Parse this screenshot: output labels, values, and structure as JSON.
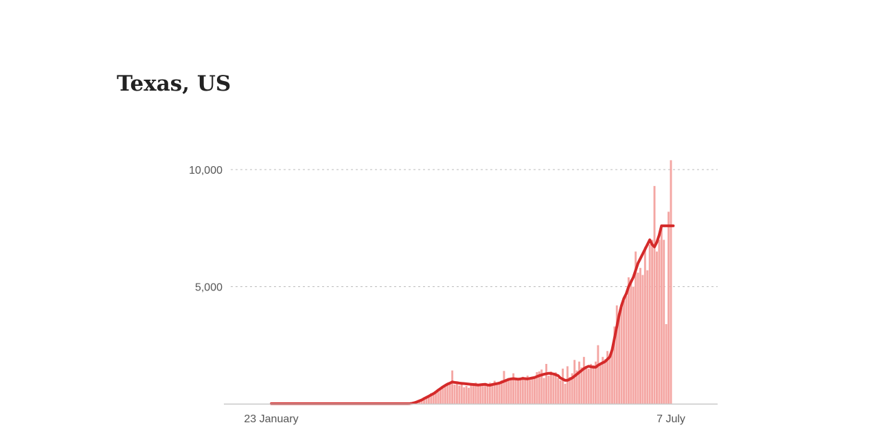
{
  "title": "Texas, US",
  "colors": {
    "bar": "#f4a6a3",
    "bar_highlight": "#f0b8b6",
    "line": "#d42a2a",
    "grid": "#bbbbbb",
    "baseline": "#c8c8c8",
    "text": "#555555"
  },
  "chart_data": {
    "type": "bar",
    "title": "Texas, US",
    "xlabel": "",
    "ylabel": "",
    "x_tick_labels": [
      "23 January",
      "7 July"
    ],
    "x_range": [
      "2020-01-23",
      "2020-07-07"
    ],
    "y_ticks": [
      5000,
      10000
    ],
    "y_tick_labels": [
      "5,000",
      "10,000"
    ],
    "ylim": [
      0,
      10000
    ],
    "grid": "horizontal dashed",
    "series": [
      {
        "type": "bar",
        "values": [
          0,
          0,
          0,
          0,
          0,
          0,
          0,
          0,
          0,
          0,
          0,
          0,
          0,
          0,
          0,
          0,
          0,
          0,
          0,
          0,
          0,
          0,
          0,
          0,
          0,
          0,
          0,
          0,
          0,
          0,
          0,
          0,
          0,
          0,
          0,
          0,
          0,
          0,
          0,
          0,
          0,
          0,
          0,
          0,
          0,
          0,
          0,
          0,
          0,
          0,
          0,
          0,
          0,
          0,
          0,
          0,
          0,
          0,
          0,
          5,
          20,
          40,
          80,
          110,
          150,
          230,
          260,
          340,
          450,
          430,
          520,
          600,
          650,
          700,
          720,
          800,
          870,
          1420,
          820,
          940,
          780,
          820,
          700,
          760,
          680,
          820,
          830,
          900,
          760,
          820,
          760,
          850,
          820,
          900,
          870,
          980,
          830,
          940,
          1000,
          1400,
          1000,
          1100,
          1020,
          1300,
          1040,
          1100,
          1080,
          1150,
          1060,
          1200,
          1020,
          1100,
          1120,
          1350,
          1380,
          1460,
          1100,
          1700,
          1200,
          1380,
          1200,
          1340,
          1100,
          1000,
          1500,
          850,
          1600,
          1140,
          1300,
          1870,
          1420,
          1800,
          1550,
          2000,
          1600,
          1500,
          1700,
          1650,
          1800,
          2500,
          1700,
          2000,
          1900,
          2250,
          2100,
          2400,
          3300,
          4200,
          3800,
          4100,
          4400,
          4600,
          5400,
          5300,
          5000,
          6500,
          5600,
          5800,
          5500,
          6700,
          5700,
          6800,
          7000,
          9300,
          6500,
          7000,
          7500,
          7000,
          3400,
          8200,
          10400
        ]
      },
      {
        "type": "line",
        "values": [
          0,
          0,
          0,
          0,
          0,
          0,
          0,
          0,
          0,
          0,
          0,
          0,
          0,
          0,
          0,
          0,
          0,
          0,
          0,
          0,
          0,
          0,
          0,
          0,
          0,
          0,
          0,
          0,
          0,
          0,
          0,
          0,
          0,
          0,
          0,
          0,
          0,
          0,
          0,
          0,
          0,
          0,
          0,
          0,
          0,
          0,
          0,
          0,
          0,
          0,
          0,
          0,
          0,
          0,
          0,
          0,
          0,
          0,
          0,
          5,
          20,
          45,
          80,
          120,
          160,
          220,
          270,
          320,
          380,
          430,
          500,
          580,
          650,
          720,
          780,
          840,
          880,
          930,
          910,
          900,
          880,
          870,
          860,
          850,
          840,
          830,
          820,
          810,
          800,
          810,
          820,
          830,
          800,
          790,
          820,
          840,
          860,
          880,
          920,
          960,
          1000,
          1040,
          1060,
          1070,
          1060,
          1050,
          1060,
          1080,
          1070,
          1060,
          1080,
          1100,
          1120,
          1160,
          1200,
          1230,
          1260,
          1280,
          1300,
          1290,
          1270,
          1240,
          1200,
          1100,
          1050,
          1000,
          1000,
          1050,
          1100,
          1180,
          1260,
          1340,
          1420,
          1500,
          1560,
          1600,
          1580,
          1560,
          1560,
          1640,
          1700,
          1750,
          1800,
          1900,
          2000,
          2300,
          2800,
          3300,
          3800,
          4200,
          4500,
          4700,
          5000,
          5200,
          5400,
          5700,
          6000,
          6200,
          6400,
          6600,
          6800,
          7000,
          6800,
          6700,
          6900,
          7200,
          7600,
          7600,
          7600,
          7600,
          7600,
          7600
        ]
      }
    ]
  }
}
